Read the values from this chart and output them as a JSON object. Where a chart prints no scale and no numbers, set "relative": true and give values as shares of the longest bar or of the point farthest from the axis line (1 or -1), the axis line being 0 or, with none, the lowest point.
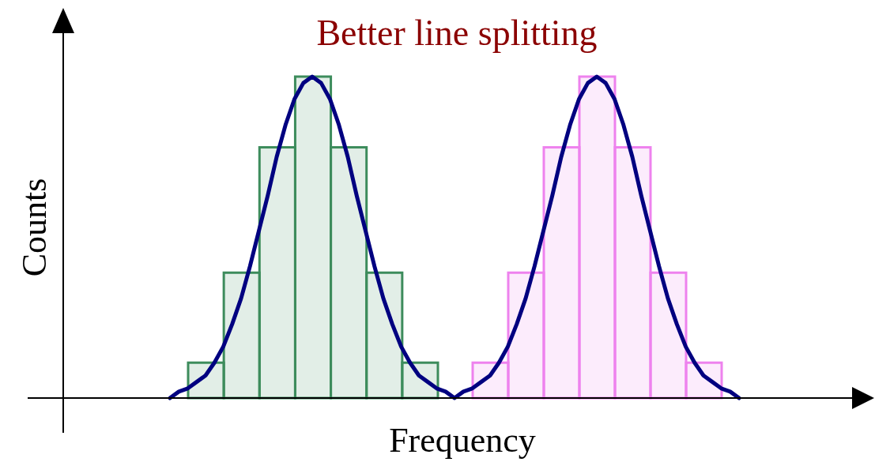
{
  "chart_data": [
    {
      "type": "bar",
      "relative": true,
      "categories": [
        null,
        null,
        null,
        null,
        null,
        null,
        null
      ],
      "series": [
        {
          "color": "#3d8c5c",
          "values": [
            0.11,
            0.39,
            0.78,
            1,
            0.78,
            0.39,
            0.11
          ]
        }
      ]
    },
    {
      "type": "bar",
      "relative": true,
      "categories": [
        null,
        null,
        null,
        null,
        null,
        null,
        null
      ],
      "series": [
        {
          "color": "#ee82ee",
          "values": [
            0.11,
            0.39,
            0.78,
            1,
            0.78,
            0.39,
            0.11
          ]
        }
      ]
    },
    {
      "type": "line",
      "title": "Better line splitting",
      "xlabel": "Frequency",
      "ylabel": "Counts",
      "relative": true,
      "categories": [
        null,
        null,
        null,
        null,
        null,
        null,
        null,
        null,
        null,
        null,
        null,
        null,
        null,
        null,
        null,
        null,
        null,
        null,
        null,
        null,
        null,
        null,
        null,
        null,
        null,
        null,
        null,
        null,
        null,
        null,
        null,
        null,
        null,
        null,
        null,
        null,
        null,
        null,
        null,
        null,
        null,
        null,
        null,
        null,
        null,
        null,
        null,
        null,
        null,
        null,
        null,
        null,
        null,
        null,
        null,
        null,
        null,
        null,
        null,
        null,
        null,
        null,
        null,
        null,
        null
      ],
      "series": [
        {
          "color": "#000080",
          "values": [
            0,
            0.02,
            0.03,
            0.05,
            0.07,
            0.11,
            0.16,
            0.23,
            0.31,
            0.41,
            0.52,
            0.63,
            0.75,
            0.85,
            0.93,
            0.98,
            1,
            0.98,
            0.93,
            0.85,
            0.75,
            0.63,
            0.52,
            0.41,
            0.31,
            0.23,
            0.16,
            0.11,
            0.07,
            0.05,
            0.03,
            0.02,
            0,
            0.02,
            0.03,
            0.05,
            0.07,
            0.11,
            0.16,
            0.23,
            0.31,
            0.41,
            0.52,
            0.63,
            0.75,
            0.85,
            0.93,
            0.98,
            1,
            0.98,
            0.93,
            0.85,
            0.75,
            0.63,
            0.52,
            0.41,
            0.31,
            0.23,
            0.16,
            0.11,
            0.07,
            0.05,
            0.03,
            0.02,
            0
          ]
        }
      ]
    }
  ]
}
